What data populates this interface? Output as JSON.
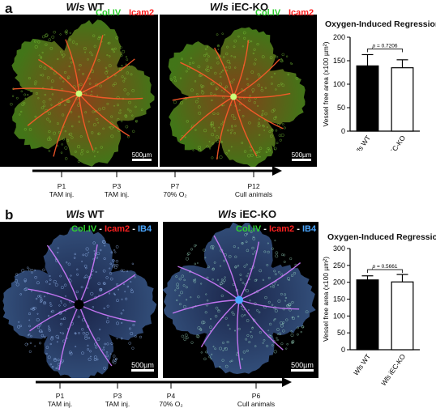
{
  "panel_a": {
    "letter": "a",
    "headers": [
      {
        "gene": "Wls",
        "group": "WT"
      },
      {
        "gene": "Wls",
        "group": "iEC-KO"
      }
    ],
    "stain": [
      {
        "text": "Col.IV",
        "color": "#2fd12f"
      },
      {
        "text": " - ",
        "color": "#ffffff"
      },
      {
        "text": "Icam2",
        "color": "#ff2020"
      }
    ],
    "scale_bar": "500µm",
    "timeline": [
      {
        "day": "P1",
        "event": "TAM inj."
      },
      {
        "day": "P3",
        "event": "TAM inj."
      },
      {
        "day": "P7",
        "event": "70% O₂"
      },
      {
        "day": "P12",
        "event": "Cull animals"
      }
    ]
  },
  "panel_b": {
    "letter": "b",
    "headers": [
      {
        "gene": "Wls",
        "group": "WT"
      },
      {
        "gene": "Wls",
        "group": "iEC-KO"
      }
    ],
    "stain": [
      {
        "text": "Col.IV",
        "color": "#2fd12f"
      },
      {
        "text": " - ",
        "color": "#ffffff"
      },
      {
        "text": "Icam2",
        "color": "#ff2020"
      },
      {
        "text": " - ",
        "color": "#ffffff"
      },
      {
        "text": "IB4",
        "color": "#4aa6ff"
      }
    ],
    "scale_bar": "500µm",
    "timeline": [
      {
        "day": "P1",
        "event": "TAM inj."
      },
      {
        "day": "P3",
        "event": "TAM inj."
      },
      {
        "day": "P4",
        "event": "70% O₂"
      },
      {
        "day": "P6",
        "event": "Cull animals"
      }
    ]
  },
  "chart_data": [
    {
      "type": "bar",
      "title": "Oxygen-Induced Regression",
      "ylabel": "Vessel free area (x100 µm²)",
      "ylim": [
        0,
        200
      ],
      "yticks": [
        0,
        50,
        100,
        150,
        200
      ],
      "categories": [
        "Wls WT",
        "Wls iEC-KO"
      ],
      "values": [
        139,
        135
      ],
      "errors": [
        24,
        17
      ],
      "fills": [
        "#000000",
        "#ffffff"
      ],
      "pvalue": "p = 0.7206"
    },
    {
      "type": "bar",
      "title": "Oxygen-Induced Regression",
      "ylabel": "Vessel free area (x100 µm²)",
      "ylim": [
        0,
        300
      ],
      "yticks": [
        0,
        50,
        100,
        150,
        200,
        250,
        300
      ],
      "categories": [
        "Wls WT",
        "Wls iEC-KO"
      ],
      "values": [
        207,
        201
      ],
      "errors": [
        12,
        22
      ],
      "fills": [
        "#000000",
        "#ffffff"
      ],
      "pvalue": "p = 0.5661"
    }
  ]
}
